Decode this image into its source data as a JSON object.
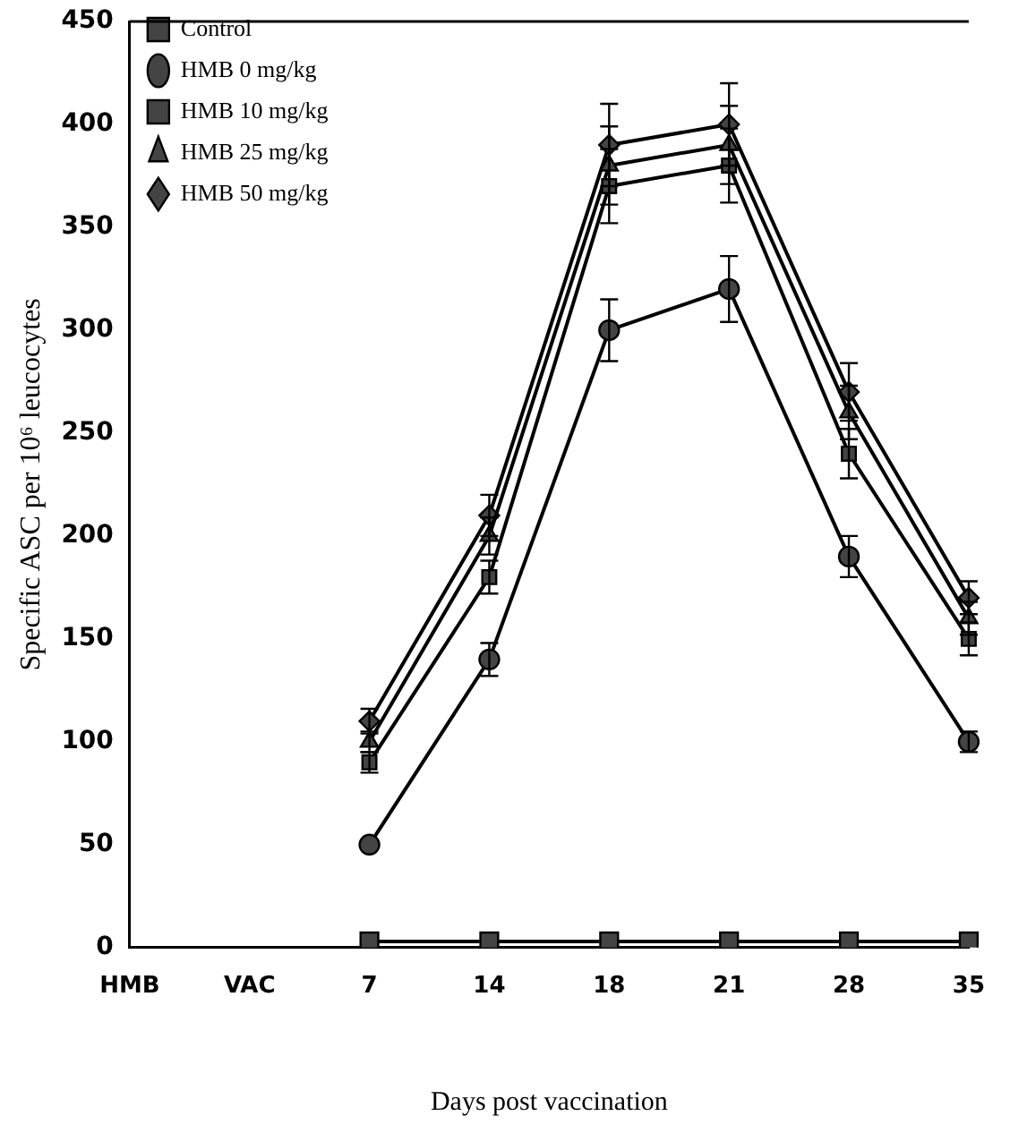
{
  "chart_data": {
    "type": "line",
    "xlabel": "Days post vaccination",
    "ylabel": "Specific ASC per 10⁶ leucocytes",
    "categories": [
      "HMB",
      "VAC",
      "7",
      "14",
      "18",
      "21",
      "28",
      "35"
    ],
    "ylim": [
      0,
      450
    ],
    "yticks": [
      0,
      50,
      100,
      150,
      200,
      250,
      300,
      350,
      400,
      450
    ],
    "grid": false,
    "legend": "top left",
    "line_style": "solid",
    "series": [
      {
        "name": "Control",
        "color": "#000000",
        "marker": "square",
        "values": [
          null,
          null,
          3,
          3,
          3,
          3,
          3,
          3
        ]
      },
      {
        "name": "HMB 0 mg/kg",
        "color": "#000000",
        "marker": "circle",
        "values": [
          null,
          null,
          50,
          140,
          300,
          320,
          190,
          100
        ],
        "errors": [
          null,
          null,
          null,
          8,
          15,
          16,
          10,
          5
        ]
      },
      {
        "name": "HMB 10 mg/kg",
        "color": "#000000",
        "marker": "square",
        "values": [
          null,
          null,
          90,
          180,
          370,
          380,
          240,
          150
        ],
        "errors": [
          null,
          null,
          5,
          8,
          18,
          18,
          12,
          8
        ]
      },
      {
        "name": "HMB 25 mg/kg",
        "color": "#000000",
        "marker": "triangle",
        "values": [
          null,
          null,
          100,
          200,
          380,
          390,
          260,
          160
        ],
        "errors": [
          null,
          null,
          5,
          9,
          19,
          19,
          13,
          8
        ]
      },
      {
        "name": "HMB 50 mg/kg",
        "color": "#000000",
        "marker": "diamond",
        "values": [
          null,
          null,
          110,
          210,
          390,
          400,
          270,
          170
        ],
        "errors": [
          null,
          null,
          6,
          10,
          20,
          20,
          14,
          8
        ]
      }
    ]
  }
}
